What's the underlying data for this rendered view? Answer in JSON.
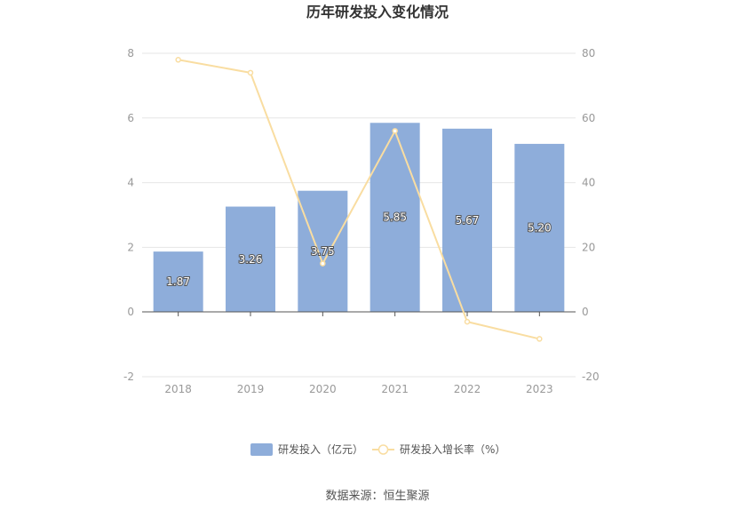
{
  "chart_data": {
    "type": "bar",
    "title": "历年研发投入变化情况",
    "categories": [
      "2018",
      "2019",
      "2020",
      "2021",
      "2022",
      "2023"
    ],
    "series": [
      {
        "name": "研发投入（亿元）",
        "type": "bar",
        "axis": "left",
        "values": [
          1.87,
          3.26,
          3.75,
          5.85,
          5.67,
          5.2
        ],
        "labels": [
          "1.87",
          "3.26",
          "3.75",
          "5.85",
          "5.67",
          "5.20"
        ],
        "color": "#8eadda"
      },
      {
        "name": "研发投入增长率（%）",
        "type": "line",
        "axis": "right",
        "values": [
          78,
          74,
          15,
          56,
          -3,
          -8.3
        ],
        "color": "#f9dda1"
      }
    ],
    "y_left": {
      "ylim": [
        -2,
        8
      ],
      "ticks": [
        "-2",
        "0",
        "2",
        "4",
        "6",
        "8"
      ]
    },
    "y_right": {
      "ylim": [
        -20,
        80
      ],
      "ticks": [
        "-20",
        "0",
        "20",
        "40",
        "60",
        "80"
      ]
    },
    "grid": true,
    "legend_position": "bottom"
  },
  "source_text": "数据来源：恒生聚源"
}
